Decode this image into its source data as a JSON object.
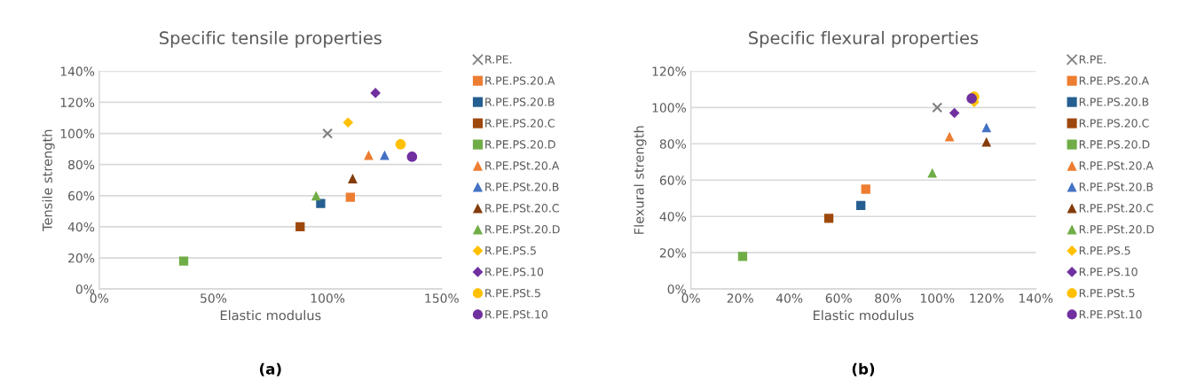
{
  "chart_data": [
    {
      "type": "scatter",
      "title": "Specific tensile properties",
      "xlabel": "Elastic modulus",
      "ylabel": "Tensile strength",
      "xlim": [
        0,
        150
      ],
      "ylim": [
        0,
        140
      ],
      "xticks": [
        {
          "value": 0,
          "label": "0%"
        },
        {
          "value": 50,
          "label": "50%"
        },
        {
          "value": 100,
          "label": "100%"
        },
        {
          "value": 150,
          "label": "150%"
        }
      ],
      "yticks": [
        {
          "value": 0,
          "label": "0%"
        },
        {
          "value": 20,
          "label": "20%"
        },
        {
          "value": 40,
          "label": "40%"
        },
        {
          "value": 60,
          "label": "60%"
        },
        {
          "value": 80,
          "label": "80%"
        },
        {
          "value": 100,
          "label": "100%"
        },
        {
          "value": 120,
          "label": "120%"
        },
        {
          "value": 140,
          "label": "140%"
        }
      ],
      "grid": "y",
      "legend": "right",
      "annotations": [
        "(a)"
      ],
      "series": [
        {
          "name": "R.PE.",
          "color": "#7f7f7f",
          "marker": "cross",
          "x": [
            100
          ],
          "values": [
            100
          ]
        },
        {
          "name": "R.PE.PS.20.A",
          "color": "#ed7d31",
          "marker": "square",
          "x": [
            110
          ],
          "values": [
            59
          ]
        },
        {
          "name": "R.PE.PS.20.B",
          "color": "#255e91",
          "marker": "square",
          "x": [
            97
          ],
          "values": [
            55
          ]
        },
        {
          "name": "R.PE.PS.20.C",
          "color": "#9e480e",
          "marker": "square",
          "x": [
            88
          ],
          "values": [
            40
          ]
        },
        {
          "name": "R.PE.PS.20.D",
          "color": "#70ad47",
          "marker": "square",
          "x": [
            37
          ],
          "values": [
            18
          ]
        },
        {
          "name": "R.PE.PSt.20.A",
          "color": "#ed7d31",
          "marker": "triangle",
          "x": [
            118
          ],
          "values": [
            86
          ]
        },
        {
          "name": "R.PE.PSt.20.B",
          "color": "#4472c4",
          "marker": "triangle",
          "x": [
            125
          ],
          "values": [
            86
          ]
        },
        {
          "name": "R.PE.PSt.20.C",
          "color": "#843c0c",
          "marker": "triangle",
          "x": [
            111
          ],
          "values": [
            71
          ]
        },
        {
          "name": "R.PE.PSt.20.D",
          "color": "#70ad47",
          "marker": "triangle",
          "x": [
            95
          ],
          "values": [
            60
          ]
        },
        {
          "name": "R.PE.PS.5",
          "color": "#ffc000",
          "marker": "diamond",
          "x": [
            109
          ],
          "values": [
            107
          ]
        },
        {
          "name": "R.PE.PS.10",
          "color": "#7030a0",
          "marker": "diamond",
          "x": [
            121
          ],
          "values": [
            126
          ]
        },
        {
          "name": "R.PE.PSt.5",
          "color": "#ffc000",
          "marker": "circle",
          "x": [
            132
          ],
          "values": [
            93
          ]
        },
        {
          "name": "R.PE.PSt.10",
          "color": "#7030a0",
          "marker": "circle",
          "x": [
            137
          ],
          "values": [
            85
          ]
        }
      ]
    },
    {
      "type": "scatter",
      "title": "Specific flexural properties",
      "xlabel": "Elastic modulus",
      "ylabel": "Flexural strength",
      "xlim": [
        0,
        140
      ],
      "ylim": [
        0,
        120
      ],
      "xticks": [
        {
          "value": 0,
          "label": "0%"
        },
        {
          "value": 20,
          "label": "20%"
        },
        {
          "value": 40,
          "label": "40%"
        },
        {
          "value": 60,
          "label": "60%"
        },
        {
          "value": 80,
          "label": "80%"
        },
        {
          "value": 100,
          "label": "100%"
        },
        {
          "value": 120,
          "label": "120%"
        },
        {
          "value": 140,
          "label": "140%"
        }
      ],
      "yticks": [
        {
          "value": 0,
          "label": "0%"
        },
        {
          "value": 20,
          "label": "20%"
        },
        {
          "value": 40,
          "label": "40%"
        },
        {
          "value": 60,
          "label": "60%"
        },
        {
          "value": 80,
          "label": "80%"
        },
        {
          "value": 100,
          "label": "100%"
        },
        {
          "value": 120,
          "label": "120%"
        }
      ],
      "grid": "y",
      "legend": "right",
      "annotations": [
        "(b)"
      ],
      "series": [
        {
          "name": "R.PE.",
          "color": "#7f7f7f",
          "marker": "cross",
          "x": [
            100
          ],
          "values": [
            100
          ]
        },
        {
          "name": "R.PE.PS.20.A",
          "color": "#ed7d31",
          "marker": "square",
          "x": [
            71
          ],
          "values": [
            55
          ]
        },
        {
          "name": "R.PE.PS.20.B",
          "color": "#255e91",
          "marker": "square",
          "x": [
            69
          ],
          "values": [
            46
          ]
        },
        {
          "name": "R.PE.PS.20.C",
          "color": "#9e480e",
          "marker": "square",
          "x": [
            56
          ],
          "values": [
            39
          ]
        },
        {
          "name": "R.PE.PS.20.D",
          "color": "#70ad47",
          "marker": "square",
          "x": [
            21
          ],
          "values": [
            18
          ]
        },
        {
          "name": "R.PE.PSt.20.A",
          "color": "#ed7d31",
          "marker": "triangle",
          "x": [
            105
          ],
          "values": [
            84
          ]
        },
        {
          "name": "R.PE.PSt.20.B",
          "color": "#4472c4",
          "marker": "triangle",
          "x": [
            120
          ],
          "values": [
            89
          ]
        },
        {
          "name": "R.PE.PSt.20.C",
          "color": "#843c0c",
          "marker": "triangle",
          "x": [
            120
          ],
          "values": [
            81
          ]
        },
        {
          "name": "R.PE.PSt.20.D",
          "color": "#70ad47",
          "marker": "triangle",
          "x": [
            98
          ],
          "values": [
            64
          ]
        },
        {
          "name": "R.PE.PS.5",
          "color": "#ffc000",
          "marker": "diamond",
          "x": [
            115
          ],
          "values": [
            103
          ]
        },
        {
          "name": "R.PE.PS.10",
          "color": "#7030a0",
          "marker": "diamond",
          "x": [
            107
          ],
          "values": [
            97
          ]
        },
        {
          "name": "R.PE.PSt.5",
          "color": "#ffc000",
          "marker": "circle",
          "x": [
            115
          ],
          "values": [
            106
          ]
        },
        {
          "name": "R.PE.PSt.10",
          "color": "#7030a0",
          "marker": "circle",
          "x": [
            114
          ],
          "values": [
            105
          ]
        }
      ]
    }
  ]
}
